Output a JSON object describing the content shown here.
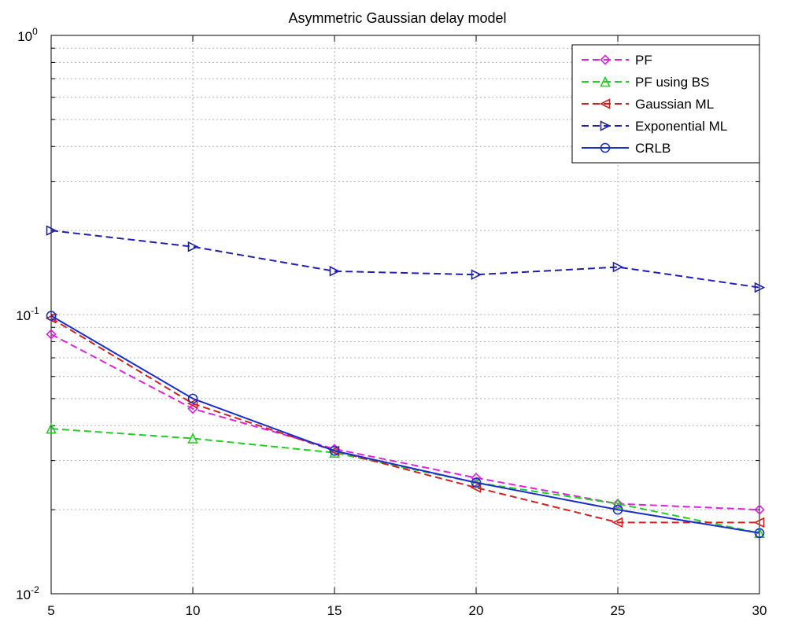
{
  "chart_data": {
    "type": "line",
    "title": "Asymmetric Gaussian delay model",
    "xlabel": "",
    "ylabel": "",
    "y_scale": "log",
    "xlim": [
      5,
      30
    ],
    "ylim": [
      0.01,
      1
    ],
    "grid": true,
    "legend_position": "top-right",
    "x": [
      5,
      10,
      15,
      20,
      25,
      30
    ],
    "x_ticks": [
      "5",
      "10",
      "15",
      "20",
      "25",
      "30"
    ],
    "y_ticks": [
      {
        "value": 1,
        "base": "10",
        "exp": "0"
      },
      {
        "value": 0.1,
        "base": "10",
        "exp": "-1"
      },
      {
        "value": 0.01,
        "base": "10",
        "exp": "-2"
      }
    ],
    "series": [
      {
        "name": "PF",
        "color": "#e020e0",
        "dash": "dashed",
        "marker": "diamond",
        "values": [
          0.085,
          0.046,
          0.033,
          0.026,
          0.021,
          0.02
        ]
      },
      {
        "name": "PF using BS",
        "color": "#20d020",
        "dash": "dashed",
        "marker": "triangle-up",
        "values": [
          0.039,
          0.036,
          0.032,
          0.025,
          0.021,
          0.0165
        ]
      },
      {
        "name": "Gaussian ML",
        "color": "#d02020",
        "dash": "dashed",
        "marker": "triangle-left",
        "values": [
          0.097,
          0.048,
          0.0325,
          0.024,
          0.018,
          0.018
        ]
      },
      {
        "name": "Exponential ML",
        "color": "#2020b0",
        "dash": "dashed",
        "marker": "triangle-right",
        "values": [
          0.2,
          0.175,
          0.143,
          0.139,
          0.148,
          0.125
        ]
      },
      {
        "name": "CRLB",
        "color": "#1a2fc8",
        "dash": "solid",
        "marker": "circle",
        "values": [
          0.099,
          0.05,
          0.0325,
          0.025,
          0.02,
          0.0165
        ]
      }
    ]
  }
}
